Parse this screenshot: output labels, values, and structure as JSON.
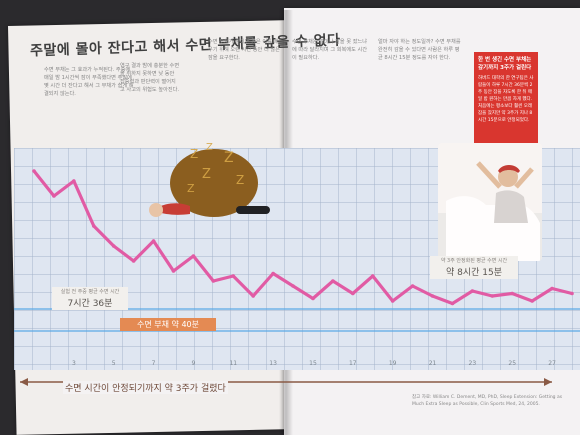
{
  "title": "주말에 몰아 잔다고 해서 수면 부채를 갚을 수 없다",
  "right_callout": {
    "heading": "한 번 생긴 수면 부채는 갚기까지 3주가 걸린다",
    "body": "하버드 대학의 한 연구팀은 사람들이 하루 7시간 36분씩 2주 동안 잠을 자도록 한 뒤 매일 밤 원하는 만큼 자게 했다. 처음에는 평소보다 훨씬 오래 잠을 잤지만 약 3주가 지나 8시간 15분으로 안정되었다."
  },
  "text_block_left_1": "수면 부채는 그 효과가 누적된다. 주중에 매일 밤 1시간씩 잠이 부족했다면 주말에 몇 시간 더 잔다고 해서 그 부채가 쉽게 해결되지 않는다.",
  "text_block_left_2": "연구 결과 밤에 충분한 수면을 취하지 못하면 낮 동안 집중력과 판단력이 떨어지고 사고의 위험도 높아진다.",
  "text_block_right_1": "수면 부채가 쌓이면 몸은 이를 메우기 위해 오랜 시간 동안 더 많은 잠을 요구한다.",
  "text_block_right_2": "수면 부채는 얼마나 잠을 못 잤느냐에 따라 달라지며 그 회복에도 시간이 필요하다.",
  "text_block_right_3": "얼마 자야 하는 정도일까? 수면 부채를 완전히 갚을 수 있다면 사람은 하루 평균 8시간 15분 정도를 자야 한다.",
  "chart_data": {
    "type": "line",
    "x_ticks": [
      3,
      5,
      7,
      9,
      11,
      13,
      15,
      17,
      19,
      21,
      23,
      25,
      27
    ],
    "x": [
      1,
      2,
      3,
      4,
      5,
      6,
      7,
      8,
      9,
      10,
      11,
      12,
      13,
      14,
      15,
      16,
      17,
      18,
      19,
      20,
      21,
      22,
      23,
      24,
      25,
      26,
      27,
      28
    ],
    "series": [
      {
        "values": [
          10.5,
          10.0,
          10.3,
          9.4,
          9.0,
          8.7,
          9.1,
          8.5,
          8.8,
          8.3,
          8.4,
          8.0,
          8.45,
          8.2,
          7.95,
          8.3,
          8.05,
          8.4,
          7.9,
          8.2,
          8.0,
          7.85,
          8.1,
          8.0,
          8.05,
          7.9,
          8.15,
          8.05
        ]
      }
    ],
    "baseline_label": "실험 전 주중 평균 수면 시간",
    "baseline_value_label": "7시간 36분",
    "stable_label": "약 3주 안정화된 평균 수면 시간",
    "stable_value_label": "약 8시간 15분",
    "debt_label": "수면 부채 약 40분",
    "arrow_label": "수면 시간이 안정되기까지 약 3주가 걸렸다",
    "colors": {
      "line": "#e15ba4",
      "baseline": "#3aa0e0",
      "stable": "#3aa0e0",
      "debt": "#e48a53"
    }
  },
  "source": "참고 자료: William C. Dement, MD, PhD, Sleep Extension: Getting as Much Extra Sleep as Possible, Clin Sports Med, 24, 2005."
}
